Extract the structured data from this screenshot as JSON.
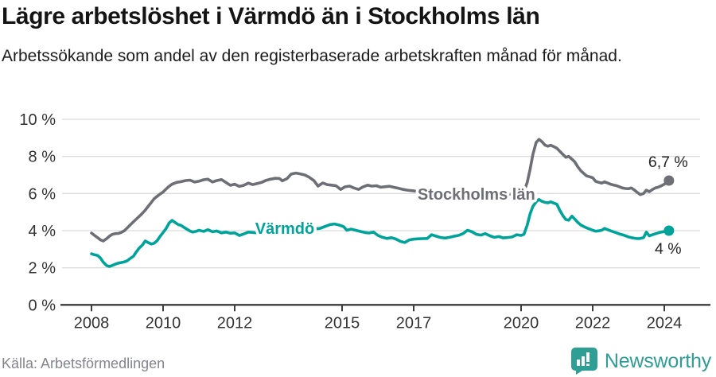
{
  "chart_data": {
    "type": "line",
    "title": "Lägre arbetslöshet i Värmdö än i Stockholms län",
    "subtitle": "Arbetssökande som andel av den registerbaserade arbetskraften månad för månad.",
    "source": "Källa: Arbetsförmedlingen",
    "xlabel": "",
    "ylabel": "",
    "ylim": [
      0,
      10
    ],
    "xlim": [
      2008,
      2024.6
    ],
    "grid": "horizontal",
    "legend_position": "inline-labels-on-lines",
    "y_ticks": [
      0,
      2,
      4,
      6,
      8,
      10
    ],
    "y_tick_suffix": " %",
    "x_ticks": [
      2008,
      2010,
      2012,
      2015,
      2017,
      2020,
      2022,
      2024
    ],
    "series": [
      {
        "name": "Stockholms län",
        "color": "#6e6e76",
        "end_label": "6,7 %",
        "end_label_side": "above",
        "label_anchor": {
          "x": 2018.75,
          "y": 5.97
        },
        "points": [
          [
            2008.0,
            3.87
          ],
          [
            2008.08,
            3.75
          ],
          [
            2008.17,
            3.62
          ],
          [
            2008.25,
            3.5
          ],
          [
            2008.33,
            3.44
          ],
          [
            2008.42,
            3.56
          ],
          [
            2008.5,
            3.7
          ],
          [
            2008.58,
            3.8
          ],
          [
            2008.67,
            3.84
          ],
          [
            2008.75,
            3.85
          ],
          [
            2008.83,
            3.9
          ],
          [
            2008.92,
            4.0
          ],
          [
            2009.0,
            4.15
          ],
          [
            2009.13,
            4.4
          ],
          [
            2009.25,
            4.62
          ],
          [
            2009.38,
            4.85
          ],
          [
            2009.5,
            5.1
          ],
          [
            2009.63,
            5.42
          ],
          [
            2009.75,
            5.72
          ],
          [
            2009.88,
            5.92
          ],
          [
            2010.0,
            6.08
          ],
          [
            2010.13,
            6.33
          ],
          [
            2010.25,
            6.5
          ],
          [
            2010.38,
            6.6
          ],
          [
            2010.5,
            6.64
          ],
          [
            2010.63,
            6.7
          ],
          [
            2010.75,
            6.72
          ],
          [
            2010.88,
            6.62
          ],
          [
            2011.0,
            6.66
          ],
          [
            2011.13,
            6.74
          ],
          [
            2011.25,
            6.77
          ],
          [
            2011.38,
            6.62
          ],
          [
            2011.5,
            6.7
          ],
          [
            2011.63,
            6.75
          ],
          [
            2011.75,
            6.6
          ],
          [
            2011.88,
            6.44
          ],
          [
            2012.0,
            6.5
          ],
          [
            2012.13,
            6.38
          ],
          [
            2012.25,
            6.44
          ],
          [
            2012.38,
            6.56
          ],
          [
            2012.5,
            6.48
          ],
          [
            2012.63,
            6.54
          ],
          [
            2012.75,
            6.6
          ],
          [
            2012.88,
            6.71
          ],
          [
            2013.0,
            6.77
          ],
          [
            2013.13,
            6.82
          ],
          [
            2013.25,
            6.81
          ],
          [
            2013.33,
            6.68
          ],
          [
            2013.46,
            6.8
          ],
          [
            2013.58,
            7.05
          ],
          [
            2013.71,
            7.1
          ],
          [
            2013.83,
            7.06
          ],
          [
            2013.96,
            7.0
          ],
          [
            2014.08,
            6.88
          ],
          [
            2014.21,
            6.7
          ],
          [
            2014.33,
            6.4
          ],
          [
            2014.46,
            6.57
          ],
          [
            2014.58,
            6.48
          ],
          [
            2014.71,
            6.45
          ],
          [
            2014.83,
            6.42
          ],
          [
            2014.96,
            6.22
          ],
          [
            2015.08,
            6.36
          ],
          [
            2015.21,
            6.4
          ],
          [
            2015.33,
            6.3
          ],
          [
            2015.46,
            6.22
          ],
          [
            2015.58,
            6.35
          ],
          [
            2015.71,
            6.45
          ],
          [
            2015.83,
            6.4
          ],
          [
            2015.96,
            6.42
          ],
          [
            2016.08,
            6.34
          ],
          [
            2016.21,
            6.37
          ],
          [
            2016.33,
            6.39
          ],
          [
            2016.46,
            6.33
          ],
          [
            2016.58,
            6.28
          ],
          [
            2016.71,
            6.22
          ],
          [
            2016.83,
            6.18
          ],
          [
            2016.96,
            6.15
          ],
          [
            2017.25,
            6.08
          ],
          [
            2017.5,
            6.02
          ],
          [
            2017.75,
            5.97
          ],
          [
            2018.0,
            5.92
          ],
          [
            2018.25,
            5.88
          ],
          [
            2018.5,
            5.86
          ],
          [
            2018.75,
            5.85
          ],
          [
            2019.0,
            5.86
          ],
          [
            2019.25,
            5.9
          ],
          [
            2019.5,
            5.93
          ],
          [
            2019.75,
            5.97
          ],
          [
            2020.0,
            6.0
          ],
          [
            2020.08,
            6.1
          ],
          [
            2020.17,
            6.6
          ],
          [
            2020.25,
            7.3
          ],
          [
            2020.33,
            8.1
          ],
          [
            2020.42,
            8.75
          ],
          [
            2020.5,
            8.92
          ],
          [
            2020.58,
            8.8
          ],
          [
            2020.67,
            8.6
          ],
          [
            2020.75,
            8.55
          ],
          [
            2020.83,
            8.6
          ],
          [
            2020.92,
            8.52
          ],
          [
            2021.0,
            8.44
          ],
          [
            2021.08,
            8.28
          ],
          [
            2021.17,
            8.1
          ],
          [
            2021.25,
            7.95
          ],
          [
            2021.33,
            8.0
          ],
          [
            2021.42,
            7.85
          ],
          [
            2021.5,
            7.7
          ],
          [
            2021.58,
            7.45
          ],
          [
            2021.67,
            7.22
          ],
          [
            2021.75,
            7.08
          ],
          [
            2021.83,
            6.95
          ],
          [
            2021.92,
            6.9
          ],
          [
            2022.0,
            6.85
          ],
          [
            2022.08,
            6.66
          ],
          [
            2022.17,
            6.6
          ],
          [
            2022.25,
            6.56
          ],
          [
            2022.33,
            6.63
          ],
          [
            2022.42,
            6.56
          ],
          [
            2022.5,
            6.5
          ],
          [
            2022.58,
            6.46
          ],
          [
            2022.67,
            6.42
          ],
          [
            2022.75,
            6.36
          ],
          [
            2022.83,
            6.3
          ],
          [
            2022.92,
            6.27
          ],
          [
            2023.0,
            6.26
          ],
          [
            2023.08,
            6.3
          ],
          [
            2023.17,
            6.18
          ],
          [
            2023.25,
            6.05
          ],
          [
            2023.33,
            5.94
          ],
          [
            2023.42,
            6.0
          ],
          [
            2023.5,
            6.18
          ],
          [
            2023.58,
            6.1
          ],
          [
            2023.67,
            6.22
          ],
          [
            2023.75,
            6.3
          ],
          [
            2023.83,
            6.34
          ],
          [
            2023.92,
            6.42
          ],
          [
            2024.0,
            6.5
          ],
          [
            2024.13,
            6.7
          ]
        ]
      },
      {
        "name": "Värmdö",
        "color": "#00a39a",
        "end_label": "4 %",
        "end_label_side": "below",
        "label_anchor": {
          "x": 2013.4,
          "y": 4.12
        },
        "points": [
          [
            2008.0,
            2.75
          ],
          [
            2008.08,
            2.7
          ],
          [
            2008.17,
            2.66
          ],
          [
            2008.25,
            2.52
          ],
          [
            2008.33,
            2.3
          ],
          [
            2008.42,
            2.12
          ],
          [
            2008.5,
            2.07
          ],
          [
            2008.58,
            2.12
          ],
          [
            2008.67,
            2.2
          ],
          [
            2008.75,
            2.25
          ],
          [
            2008.83,
            2.28
          ],
          [
            2008.92,
            2.32
          ],
          [
            2009.0,
            2.38
          ],
          [
            2009.08,
            2.5
          ],
          [
            2009.17,
            2.62
          ],
          [
            2009.25,
            2.85
          ],
          [
            2009.33,
            3.05
          ],
          [
            2009.42,
            3.22
          ],
          [
            2009.5,
            3.44
          ],
          [
            2009.58,
            3.36
          ],
          [
            2009.67,
            3.28
          ],
          [
            2009.75,
            3.32
          ],
          [
            2009.83,
            3.45
          ],
          [
            2009.92,
            3.7
          ],
          [
            2010.0,
            3.9
          ],
          [
            2010.08,
            4.1
          ],
          [
            2010.17,
            4.42
          ],
          [
            2010.25,
            4.55
          ],
          [
            2010.33,
            4.45
          ],
          [
            2010.42,
            4.33
          ],
          [
            2010.5,
            4.28
          ],
          [
            2010.58,
            4.18
          ],
          [
            2010.67,
            4.07
          ],
          [
            2010.75,
            3.98
          ],
          [
            2010.83,
            3.92
          ],
          [
            2010.92,
            3.96
          ],
          [
            2011.0,
            4.02
          ],
          [
            2011.13,
            3.96
          ],
          [
            2011.25,
            4.05
          ],
          [
            2011.38,
            3.94
          ],
          [
            2011.5,
            3.98
          ],
          [
            2011.63,
            3.88
          ],
          [
            2011.75,
            3.92
          ],
          [
            2011.88,
            3.86
          ],
          [
            2012.0,
            3.88
          ],
          [
            2012.13,
            3.74
          ],
          [
            2012.25,
            3.82
          ],
          [
            2012.38,
            3.92
          ],
          [
            2012.63,
            3.88
          ],
          [
            2012.88,
            3.92
          ],
          [
            2013.13,
            3.96
          ],
          [
            2013.38,
            4.0
          ],
          [
            2013.63,
            4.02
          ],
          [
            2013.88,
            4.06
          ],
          [
            2014.13,
            4.08
          ],
          [
            2014.38,
            4.12
          ],
          [
            2014.54,
            4.24
          ],
          [
            2014.67,
            4.33
          ],
          [
            2014.79,
            4.36
          ],
          [
            2014.92,
            4.3
          ],
          [
            2015.04,
            4.22
          ],
          [
            2015.13,
            4.02
          ],
          [
            2015.25,
            4.08
          ],
          [
            2015.38,
            4.02
          ],
          [
            2015.5,
            3.96
          ],
          [
            2015.63,
            3.9
          ],
          [
            2015.75,
            3.87
          ],
          [
            2015.88,
            3.92
          ],
          [
            2016.0,
            3.74
          ],
          [
            2016.13,
            3.64
          ],
          [
            2016.25,
            3.58
          ],
          [
            2016.38,
            3.62
          ],
          [
            2016.5,
            3.55
          ],
          [
            2016.63,
            3.42
          ],
          [
            2016.75,
            3.36
          ],
          [
            2016.88,
            3.5
          ],
          [
            2017.0,
            3.54
          ],
          [
            2017.13,
            3.56
          ],
          [
            2017.25,
            3.57
          ],
          [
            2017.38,
            3.58
          ],
          [
            2017.5,
            3.78
          ],
          [
            2017.63,
            3.7
          ],
          [
            2017.75,
            3.63
          ],
          [
            2017.88,
            3.6
          ],
          [
            2018.0,
            3.64
          ],
          [
            2018.13,
            3.7
          ],
          [
            2018.25,
            3.74
          ],
          [
            2018.38,
            3.84
          ],
          [
            2018.5,
            4.02
          ],
          [
            2018.63,
            3.94
          ],
          [
            2018.75,
            3.8
          ],
          [
            2018.88,
            3.76
          ],
          [
            2019.0,
            3.84
          ],
          [
            2019.13,
            3.72
          ],
          [
            2019.25,
            3.64
          ],
          [
            2019.38,
            3.68
          ],
          [
            2019.5,
            3.61
          ],
          [
            2019.63,
            3.63
          ],
          [
            2019.75,
            3.66
          ],
          [
            2019.88,
            3.78
          ],
          [
            2020.0,
            3.74
          ],
          [
            2020.08,
            3.8
          ],
          [
            2020.17,
            4.3
          ],
          [
            2020.25,
            4.9
          ],
          [
            2020.33,
            5.3
          ],
          [
            2020.42,
            5.55
          ],
          [
            2020.5,
            5.68
          ],
          [
            2020.58,
            5.58
          ],
          [
            2020.67,
            5.52
          ],
          [
            2020.75,
            5.5
          ],
          [
            2020.83,
            5.55
          ],
          [
            2020.92,
            5.48
          ],
          [
            2021.0,
            5.42
          ],
          [
            2021.08,
            5.1
          ],
          [
            2021.17,
            4.8
          ],
          [
            2021.25,
            4.6
          ],
          [
            2021.33,
            4.56
          ],
          [
            2021.42,
            4.78
          ],
          [
            2021.5,
            4.62
          ],
          [
            2021.58,
            4.45
          ],
          [
            2021.67,
            4.3
          ],
          [
            2021.75,
            4.22
          ],
          [
            2021.83,
            4.15
          ],
          [
            2021.92,
            4.08
          ],
          [
            2022.0,
            4.02
          ],
          [
            2022.08,
            3.97
          ],
          [
            2022.17,
            3.99
          ],
          [
            2022.25,
            4.02
          ],
          [
            2022.33,
            4.12
          ],
          [
            2022.42,
            4.05
          ],
          [
            2022.5,
            3.99
          ],
          [
            2022.58,
            3.94
          ],
          [
            2022.67,
            3.88
          ],
          [
            2022.75,
            3.82
          ],
          [
            2022.83,
            3.78
          ],
          [
            2022.92,
            3.72
          ],
          [
            2023.0,
            3.66
          ],
          [
            2023.08,
            3.62
          ],
          [
            2023.17,
            3.59
          ],
          [
            2023.25,
            3.57
          ],
          [
            2023.33,
            3.58
          ],
          [
            2023.42,
            3.62
          ],
          [
            2023.5,
            3.92
          ],
          [
            2023.58,
            3.72
          ],
          [
            2023.67,
            3.78
          ],
          [
            2023.75,
            3.83
          ],
          [
            2023.83,
            3.88
          ],
          [
            2023.92,
            3.92
          ],
          [
            2024.0,
            3.95
          ],
          [
            2024.13,
            4.0
          ]
        ]
      }
    ]
  },
  "footer": {
    "brand": "Newsworthy"
  },
  "colors": {
    "title": "#141414",
    "grid": "#dcdcde",
    "axis": "#3c3c3c",
    "tick_label": "#333333",
    "end_label": "#252525",
    "source_text": "#84848e",
    "brand": "#2f9e95"
  }
}
